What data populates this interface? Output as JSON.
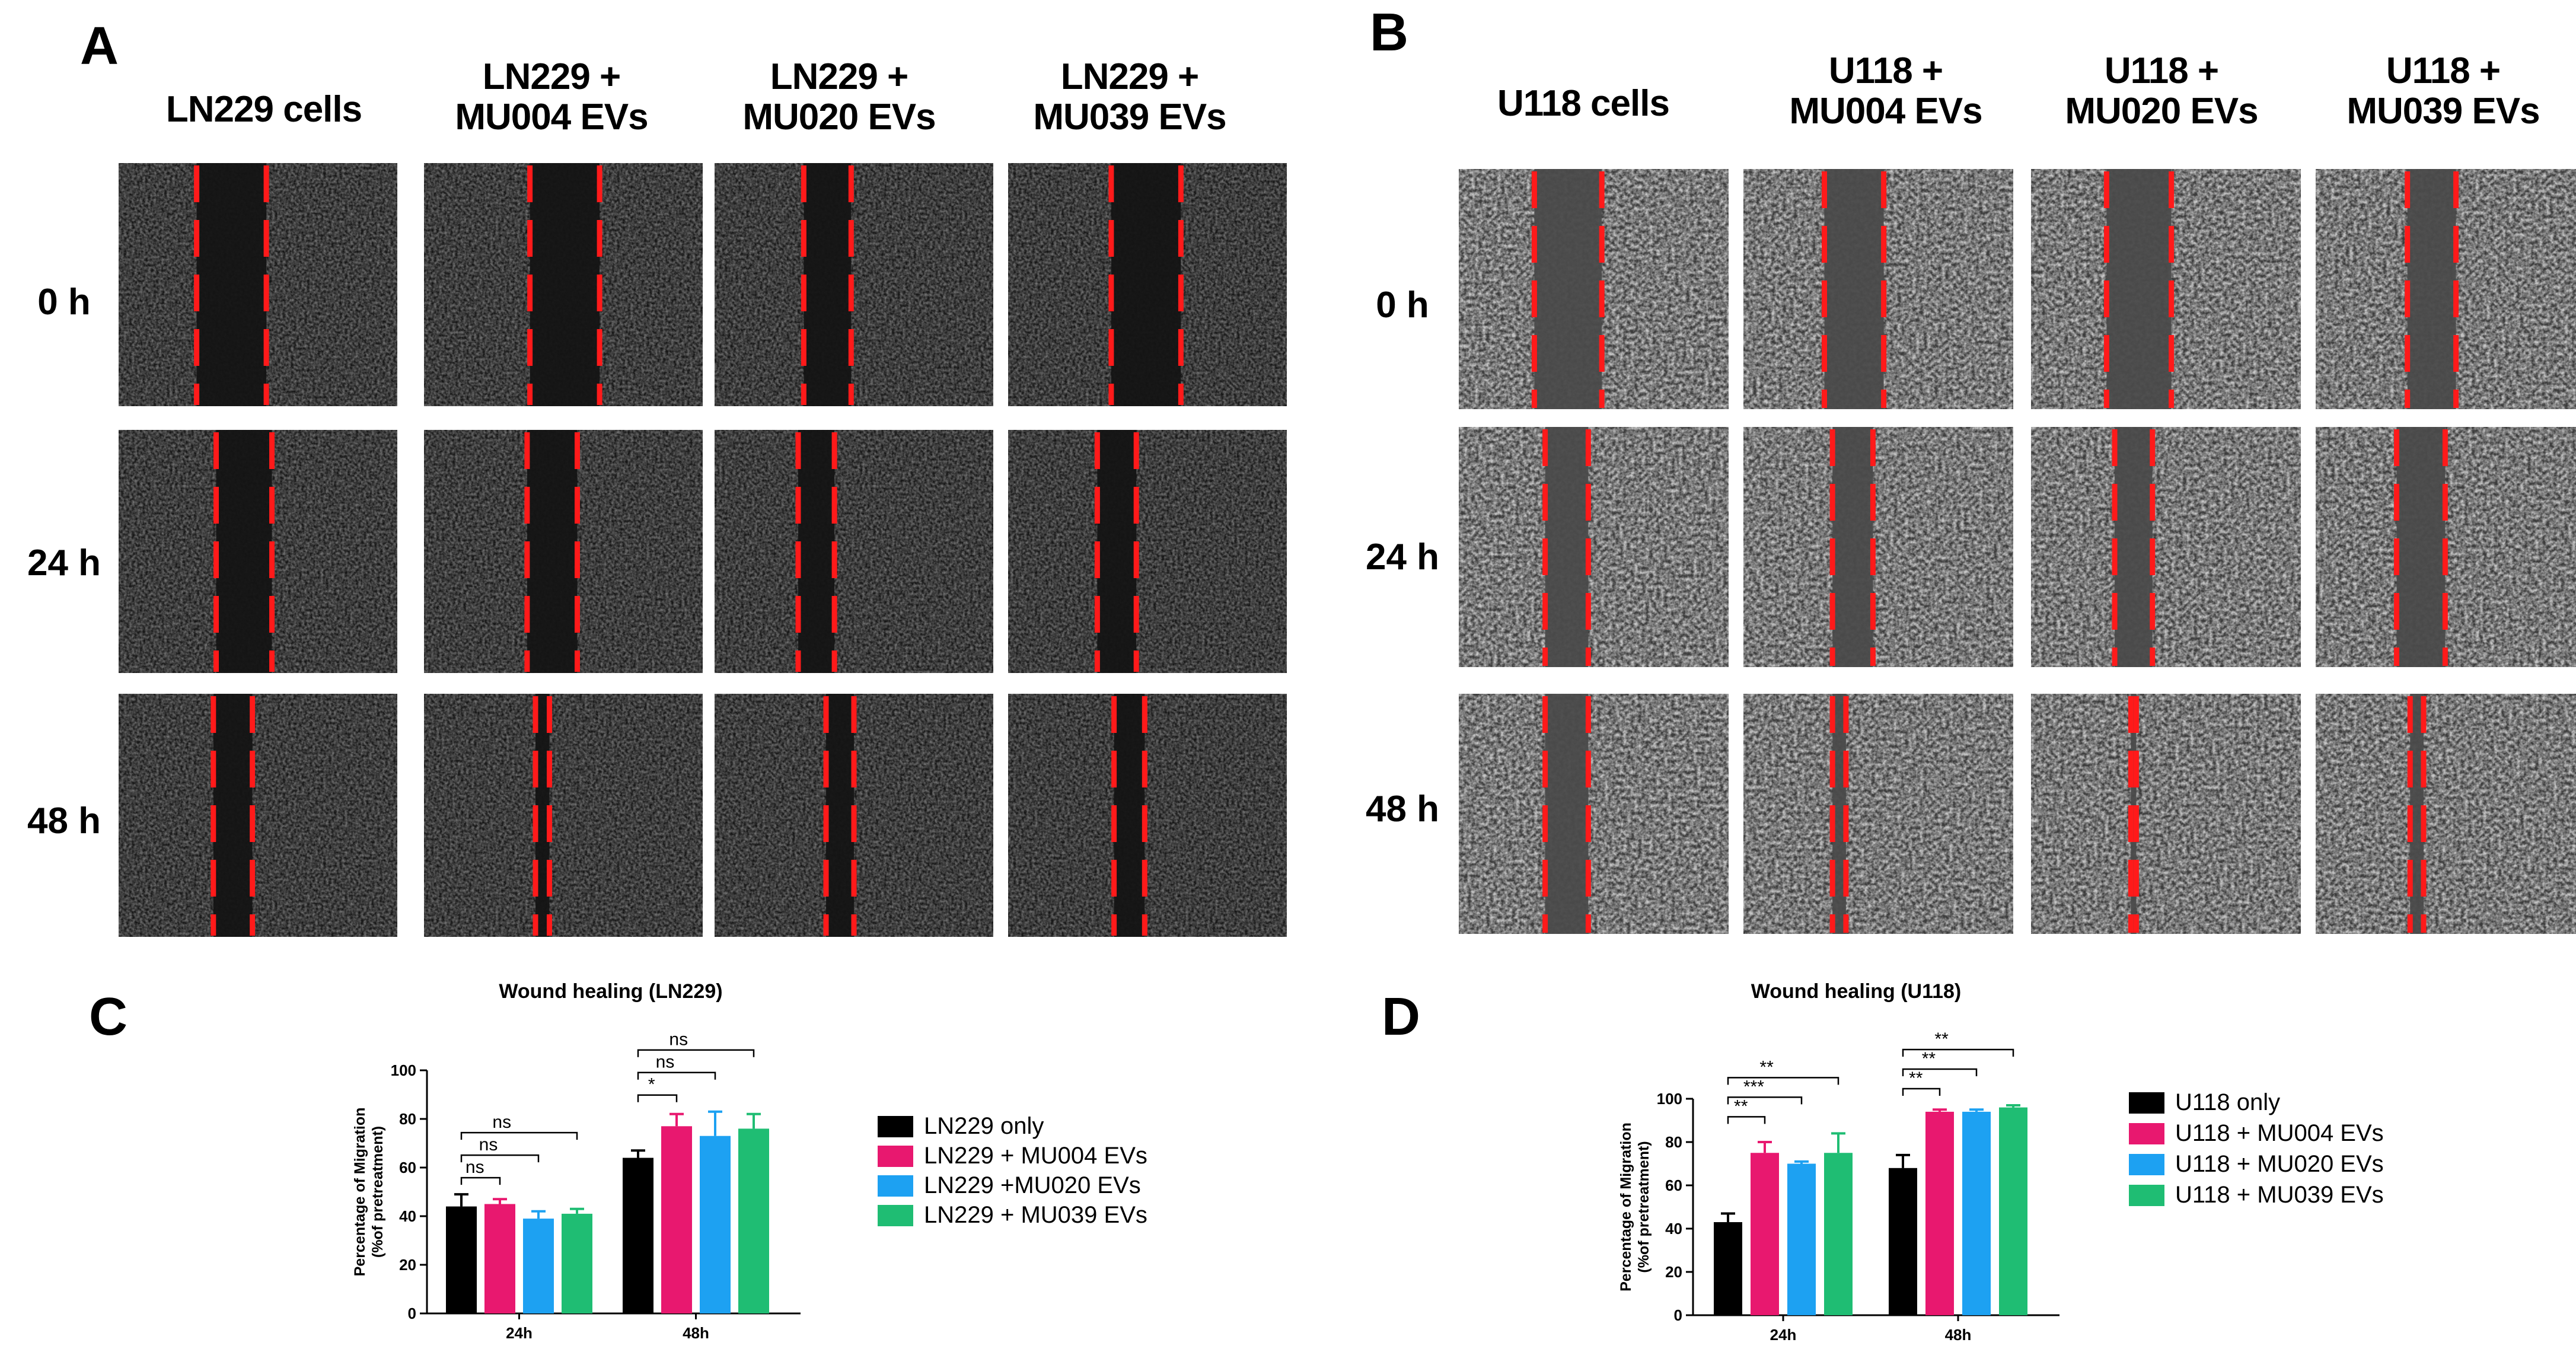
{
  "panels": {
    "A": {
      "label": "A",
      "columns": [
        "LN229 cells",
        "LN229 +|MU004 EVs",
        "LN229 +|MU020 EVs",
        "LN229 +|MU039 EVs"
      ],
      "rows": [
        "0 h",
        "24 h",
        "48 h"
      ]
    },
    "B": {
      "label": "B",
      "columns": [
        "U118 cells",
        "U118 +|MU004 EVs",
        "U118 +|MU020 EVs",
        "U118 +|MU039 EVs"
      ],
      "rows": [
        "0 h",
        "24 h",
        "48 h"
      ]
    },
    "C": {
      "label": "C"
    },
    "D": {
      "label": "D"
    }
  },
  "colors": {
    "black": "#000000",
    "pink": "#e8186f",
    "blue": "#1da1f2",
    "green": "#1fbd73",
    "red_dash": "#ff1a1a"
  },
  "chart_data": [
    {
      "id": "C",
      "type": "bar",
      "title": "Wound healing (LN229)",
      "ylabel": "Percentage of Migration (%of pretreatment)",
      "xlabel": "",
      "categories": [
        "24h",
        "48h"
      ],
      "ylim": [
        0,
        100
      ],
      "yticks": [
        0,
        20,
        40,
        60,
        80,
        100
      ],
      "series": [
        {
          "name": "LN229 only",
          "color": "#000000",
          "values": [
            44,
            64
          ],
          "errors": [
            5,
            3
          ]
        },
        {
          "name": "LN229 + MU004 EVs",
          "color": "#e8186f",
          "values": [
            45,
            77
          ],
          "errors": [
            2,
            5
          ]
        },
        {
          "name": "LN229  +MU020  EVs",
          "color": "#1da1f2",
          "values": [
            39,
            73
          ],
          "errors": [
            3,
            10
          ]
        },
        {
          "name": "LN229 + MU039 EVs",
          "color": "#1fbd73",
          "values": [
            41,
            76
          ],
          "errors": [
            2,
            6
          ]
        }
      ],
      "significance": [
        {
          "group": 0,
          "from": 0,
          "to": 1,
          "label": "ns"
        },
        {
          "group": 0,
          "from": 0,
          "to": 2,
          "label": "ns"
        },
        {
          "group": 0,
          "from": 0,
          "to": 3,
          "label": "ns"
        },
        {
          "group": 1,
          "from": 0,
          "to": 1,
          "label": "*"
        },
        {
          "group": 1,
          "from": 0,
          "to": 2,
          "label": "ns"
        },
        {
          "group": 1,
          "from": 0,
          "to": 3,
          "label": "ns"
        }
      ]
    },
    {
      "id": "D",
      "type": "bar",
      "title": "Wound healing (U118)",
      "ylabel": "Percentage of Migration (%of pretreatment)",
      "xlabel": "",
      "categories": [
        "24h",
        "48h"
      ],
      "ylim": [
        0,
        100
      ],
      "yticks": [
        0,
        20,
        40,
        60,
        80,
        100
      ],
      "series": [
        {
          "name": "U118 only",
          "color": "#000000",
          "values": [
            43,
            68
          ],
          "errors": [
            4,
            6
          ]
        },
        {
          "name": "U118 + MU004 EVs",
          "color": "#e8186f",
          "values": [
            75,
            94
          ],
          "errors": [
            5,
            1
          ]
        },
        {
          "name": "U118 + MU020 EVs",
          "color": "#1da1f2",
          "values": [
            70,
            94
          ],
          "errors": [
            1,
            1
          ]
        },
        {
          "name": "U118 + MU039 EVs",
          "color": "#1fbd73",
          "values": [
            75,
            96
          ],
          "errors": [
            9,
            1
          ]
        }
      ],
      "significance": [
        {
          "group": 0,
          "from": 0,
          "to": 1,
          "label": "**"
        },
        {
          "group": 0,
          "from": 0,
          "to": 2,
          "label": "***"
        },
        {
          "group": 0,
          "from": 0,
          "to": 3,
          "label": "**"
        },
        {
          "group": 1,
          "from": 0,
          "to": 1,
          "label": "**"
        },
        {
          "group": 1,
          "from": 0,
          "to": 2,
          "label": "**"
        },
        {
          "group": 1,
          "from": 0,
          "to": 3,
          "label": "**"
        }
      ]
    }
  ]
}
